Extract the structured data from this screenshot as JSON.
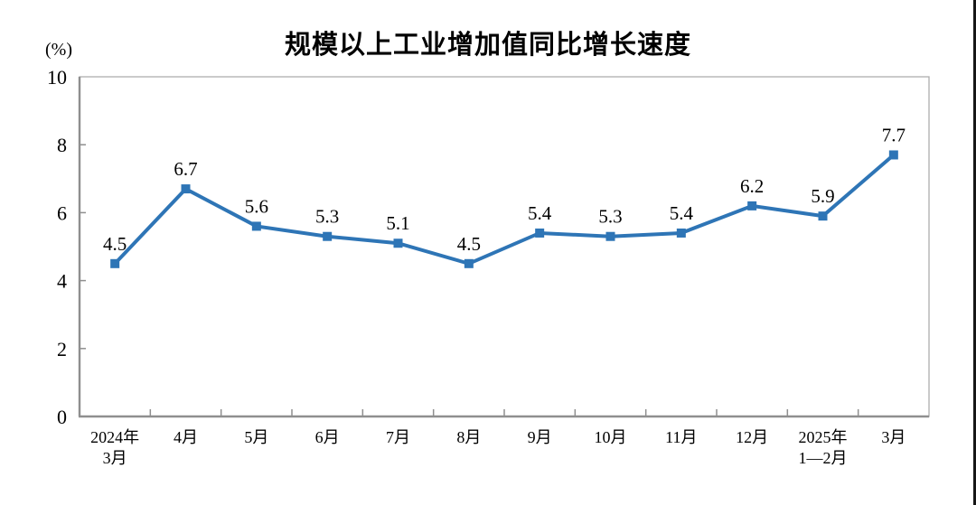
{
  "chart_data": {
    "type": "line",
    "title": "规模以上工业增加值同比增长速度",
    "ylabel": "(%)",
    "xlabel": "",
    "categories": [
      "2024年\n3月",
      "4月",
      "5月",
      "6月",
      "7月",
      "8月",
      "9月",
      "10月",
      "11月",
      "12月",
      "2025年\n1—2月",
      "3月"
    ],
    "values": [
      4.5,
      6.7,
      5.6,
      5.3,
      5.1,
      4.5,
      5.4,
      5.3,
      5.4,
      6.2,
      5.9,
      7.7
    ],
    "data_labels": [
      "4.5",
      "6.7",
      "5.6",
      "5.3",
      "5.1",
      "4.5",
      "5.4",
      "5.3",
      "5.4",
      "6.2",
      "5.9",
      "7.7"
    ],
    "ylim": [
      0,
      10
    ],
    "y_ticks": [
      0,
      2,
      4,
      6,
      8,
      10
    ],
    "grid": false,
    "legend": "none",
    "marker": "square",
    "colors": {
      "line": "#2E75B6",
      "marker": "#2E75B6",
      "axis_box": "#ADADAD",
      "axis_main": "#8F8F8F",
      "tick": "#8F8F8F",
      "label_text": "#000000"
    }
  }
}
